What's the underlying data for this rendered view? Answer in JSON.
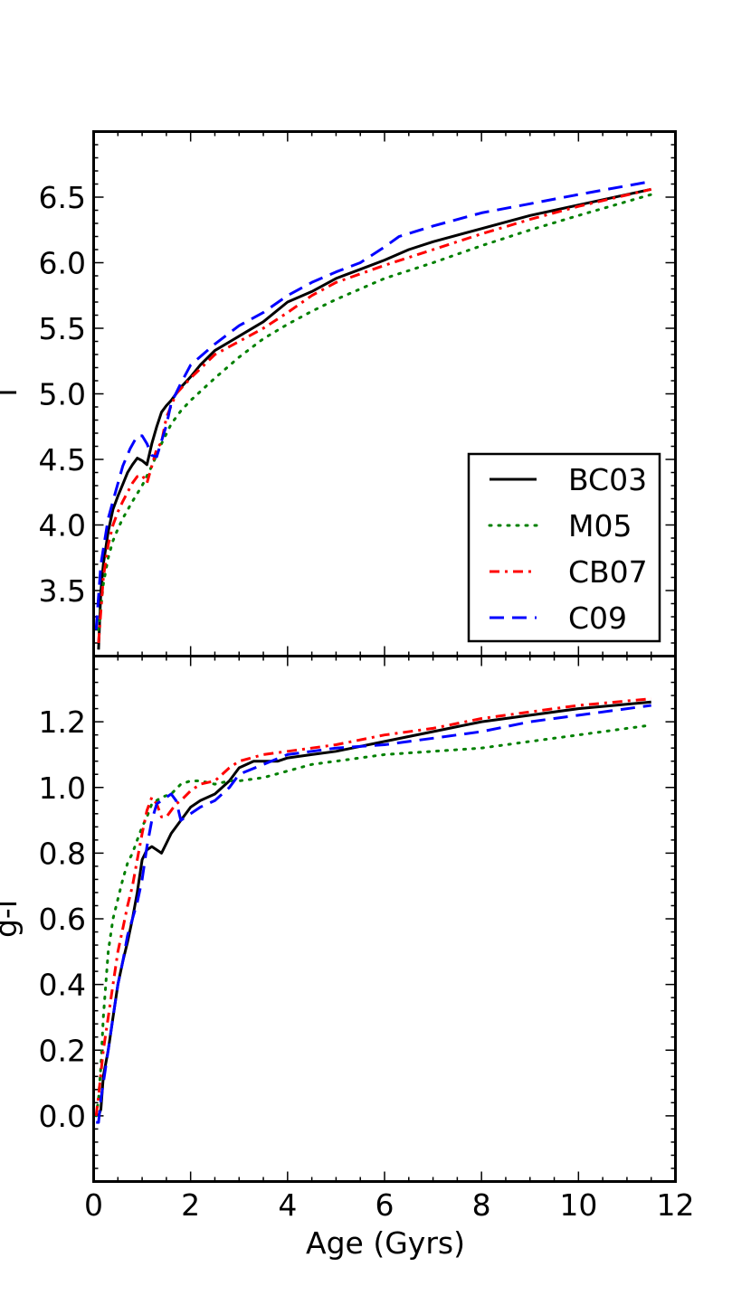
{
  "chart_data": [
    {
      "type": "line",
      "panel": "top",
      "xlabel": "",
      "ylabel": "i",
      "xlim": [
        0,
        12
      ],
      "ylim": [
        3.0,
        7.0
      ],
      "yticks": [
        3.5,
        4.0,
        4.5,
        5.0,
        5.5,
        6.0,
        6.5
      ],
      "ytick_labels": [
        "3.5",
        "4.0",
        "4.5",
        "5.0",
        "5.5",
        "6.0",
        "6.5"
      ],
      "legend": {
        "placement": "lower-right",
        "entries": [
          {
            "label": "BC03",
            "color": "#000000",
            "style": "solid"
          },
          {
            "label": "M05",
            "color": "#008000",
            "style": "dotted"
          },
          {
            "label": "CB07",
            "color": "#ff0000",
            "style": "dashdot"
          },
          {
            "label": "C09",
            "color": "#0000ff",
            "style": "dashed"
          }
        ]
      },
      "series": [
        {
          "name": "BC03",
          "color": "#000000",
          "style": "solid",
          "x": [
            0.1,
            0.15,
            0.2,
            0.3,
            0.4,
            0.5,
            0.6,
            0.7,
            0.8,
            0.9,
            1.0,
            1.1,
            1.2,
            1.3,
            1.4,
            1.5,
            1.6,
            1.8,
            2.0,
            2.2,
            2.5,
            3.0,
            3.5,
            4.0,
            4.5,
            5.0,
            5.5,
            6.0,
            6.5,
            7.0,
            8.0,
            9.0,
            10.0,
            11.5
          ],
          "y": [
            3.05,
            3.5,
            3.7,
            3.95,
            4.12,
            4.22,
            4.31,
            4.4,
            4.46,
            4.51,
            4.49,
            4.46,
            4.62,
            4.75,
            4.86,
            4.91,
            4.95,
            5.05,
            5.13,
            5.22,
            5.33,
            5.44,
            5.55,
            5.7,
            5.78,
            5.88,
            5.95,
            6.02,
            6.1,
            6.16,
            6.26,
            6.36,
            6.44,
            6.56
          ]
        },
        {
          "name": "M05",
          "color": "#008000",
          "style": "dotted",
          "x": [
            0.1,
            0.2,
            0.3,
            0.4,
            0.5,
            0.6,
            0.8,
            1.0,
            1.2,
            1.4,
            1.6,
            1.8,
            2.0,
            2.5,
            3.0,
            3.5,
            4.0,
            4.5,
            5.0,
            6.0,
            7.0,
            8.0,
            9.0,
            10.0,
            11.5
          ],
          "y": [
            3.2,
            3.55,
            3.75,
            3.88,
            3.97,
            4.05,
            4.18,
            4.3,
            4.45,
            4.62,
            4.77,
            4.87,
            4.95,
            5.12,
            5.28,
            5.42,
            5.53,
            5.63,
            5.72,
            5.88,
            6.0,
            6.13,
            6.25,
            6.36,
            6.52
          ]
        },
        {
          "name": "CB07",
          "color": "#ff0000",
          "style": "dashdot",
          "x": [
            0.1,
            0.2,
            0.3,
            0.4,
            0.5,
            0.6,
            0.7,
            0.8,
            0.9,
            1.0,
            1.1,
            1.2,
            1.3,
            1.4,
            1.5,
            1.7,
            2.0,
            2.5,
            3.0,
            3.5,
            4.0,
            4.5,
            5.0,
            6.0,
            7.0,
            8.0,
            9.0,
            10.0,
            11.5
          ],
          "y": [
            3.1,
            3.6,
            3.85,
            4.0,
            4.1,
            4.18,
            4.25,
            4.32,
            4.37,
            4.38,
            4.32,
            4.45,
            4.58,
            4.63,
            4.82,
            5.0,
            5.12,
            5.3,
            5.4,
            5.5,
            5.62,
            5.75,
            5.85,
            5.98,
            6.1,
            6.22,
            6.33,
            6.43,
            6.56
          ]
        },
        {
          "name": "C09",
          "color": "#0000ff",
          "style": "dashed",
          "x": [
            0.05,
            0.15,
            0.3,
            0.45,
            0.6,
            0.75,
            0.9,
            1.0,
            1.1,
            1.2,
            1.3,
            1.4,
            1.5,
            1.6,
            1.8,
            2.0,
            2.5,
            3.0,
            3.5,
            4.0,
            4.5,
            5.0,
            5.5,
            6.0,
            6.3,
            7.0,
            8.0,
            9.0,
            10.0,
            11.5
          ],
          "y": [
            3.2,
            3.7,
            4.05,
            4.25,
            4.45,
            4.58,
            4.68,
            4.68,
            4.62,
            4.53,
            4.52,
            4.64,
            4.76,
            4.93,
            5.08,
            5.22,
            5.38,
            5.52,
            5.62,
            5.75,
            5.85,
            5.93,
            6.0,
            6.12,
            6.2,
            6.28,
            6.38,
            6.45,
            6.52,
            6.62
          ]
        }
      ]
    },
    {
      "type": "line",
      "panel": "bottom",
      "xlabel": "Age (Gyrs)",
      "ylabel": "g-i",
      "xlim": [
        0,
        12
      ],
      "ylim": [
        -0.2,
        1.4
      ],
      "xticks": [
        0,
        2,
        4,
        6,
        8,
        10,
        12
      ],
      "xtick_labels": [
        "0",
        "2",
        "4",
        "6",
        "8",
        "10",
        "12"
      ],
      "yticks": [
        0.0,
        0.2,
        0.4,
        0.6,
        0.8,
        1.0,
        1.2
      ],
      "ytick_labels": [
        "0.0",
        "0.2",
        "0.4",
        "0.6",
        "0.8",
        "1.0",
        "1.2"
      ],
      "series": [
        {
          "name": "BC03",
          "color": "#000000",
          "style": "solid",
          "x": [
            0.1,
            0.15,
            0.2,
            0.3,
            0.4,
            0.5,
            0.6,
            0.7,
            0.8,
            0.9,
            1.0,
            1.1,
            1.2,
            1.3,
            1.4,
            1.5,
            1.6,
            1.8,
            2.0,
            2.2,
            2.5,
            2.8,
            3.0,
            3.3,
            3.6,
            3.8,
            4.0,
            4.5,
            5.0,
            6.0,
            7.0,
            8.0,
            9.0,
            10.0,
            11.5
          ],
          "y": [
            0.0,
            0.02,
            0.12,
            0.2,
            0.3,
            0.4,
            0.47,
            0.53,
            0.6,
            0.68,
            0.78,
            0.81,
            0.82,
            0.81,
            0.8,
            0.83,
            0.86,
            0.9,
            0.94,
            0.96,
            0.98,
            1.02,
            1.06,
            1.08,
            1.08,
            1.08,
            1.09,
            1.1,
            1.11,
            1.14,
            1.17,
            1.2,
            1.22,
            1.24,
            1.26
          ]
        },
        {
          "name": "M05",
          "color": "#008000",
          "style": "dotted",
          "x": [
            0.05,
            0.1,
            0.15,
            0.2,
            0.3,
            0.4,
            0.5,
            0.6,
            0.7,
            0.8,
            0.9,
            1.0,
            1.1,
            1.2,
            1.4,
            1.6,
            1.8,
            2.0,
            2.2,
            2.5,
            2.8,
            3.0,
            3.5,
            4.0,
            4.5,
            5.0,
            6.0,
            7.0,
            8.0,
            9.0,
            10.0,
            11.5
          ],
          "y": [
            0.0,
            0.05,
            0.15,
            0.3,
            0.5,
            0.6,
            0.66,
            0.72,
            0.77,
            0.8,
            0.84,
            0.88,
            0.91,
            0.95,
            0.97,
            0.98,
            1.01,
            1.02,
            1.02,
            1.01,
            1.02,
            1.02,
            1.03,
            1.05,
            1.07,
            1.08,
            1.1,
            1.11,
            1.12,
            1.14,
            1.16,
            1.19
          ]
        },
        {
          "name": "CB07",
          "color": "#ff0000",
          "style": "dashdot",
          "x": [
            0.05,
            0.1,
            0.2,
            0.3,
            0.4,
            0.5,
            0.6,
            0.7,
            0.8,
            0.9,
            1.0,
            1.1,
            1.2,
            1.3,
            1.4,
            1.5,
            1.6,
            1.7,
            1.8,
            2.0,
            2.2,
            2.5,
            2.8,
            3.0,
            3.5,
            4.0,
            4.5,
            5.0,
            6.0,
            7.0,
            8.0,
            9.0,
            10.0,
            11.5
          ],
          "y": [
            0.0,
            0.06,
            0.2,
            0.3,
            0.4,
            0.5,
            0.57,
            0.64,
            0.7,
            0.78,
            0.86,
            0.93,
            0.97,
            0.95,
            0.91,
            0.91,
            0.93,
            0.95,
            0.96,
            0.99,
            1.01,
            1.02,
            1.06,
            1.08,
            1.1,
            1.11,
            1.12,
            1.13,
            1.16,
            1.18,
            1.21,
            1.23,
            1.25,
            1.27
          ]
        },
        {
          "name": "C09",
          "color": "#0000ff",
          "style": "dashed",
          "x": [
            0.05,
            0.1,
            0.15,
            0.2,
            0.3,
            0.4,
            0.5,
            0.6,
            0.7,
            0.8,
            0.9,
            1.0,
            1.1,
            1.2,
            1.3,
            1.4,
            1.5,
            1.6,
            1.7,
            1.8,
            2.0,
            2.2,
            2.5,
            2.8,
            3.0,
            3.5,
            4.0,
            4.5,
            5.0,
            6.0,
            7.0,
            8.0,
            9.0,
            10.0,
            11.5
          ],
          "y": [
            -0.02,
            -0.02,
            0.05,
            0.1,
            0.2,
            0.3,
            0.4,
            0.47,
            0.55,
            0.6,
            0.65,
            0.72,
            0.82,
            0.9,
            0.95,
            0.96,
            0.97,
            0.98,
            0.96,
            0.9,
            0.92,
            0.94,
            0.96,
            1.0,
            1.04,
            1.07,
            1.1,
            1.11,
            1.12,
            1.13,
            1.15,
            1.17,
            1.2,
            1.22,
            1.25
          ]
        }
      ]
    }
  ]
}
